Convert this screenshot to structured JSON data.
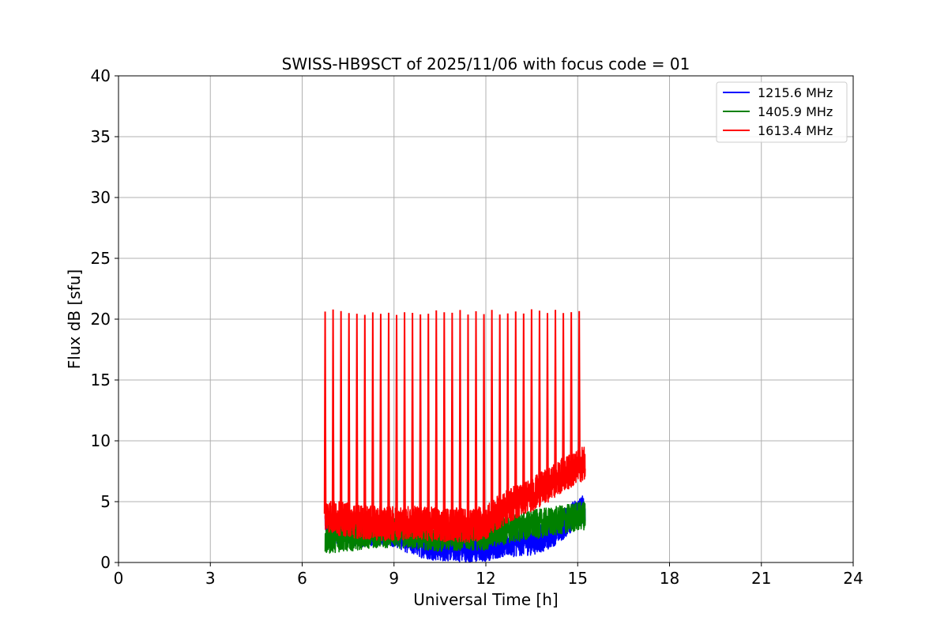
{
  "chart_data": {
    "type": "line",
    "title": "SWISS-HB9SCT of 2025/11/06 with focus code = 01",
    "xlabel": "Universal Time [h]",
    "ylabel": "Flux dB [sfu]",
    "xlim": [
      0,
      24
    ],
    "ylim": [
      0,
      40
    ],
    "xticks": [
      0,
      3,
      6,
      9,
      12,
      15,
      18,
      21,
      24
    ],
    "yticks": [
      0,
      5,
      10,
      15,
      20,
      25,
      30,
      35,
      40
    ],
    "grid": true,
    "legend_position": "top-right",
    "series": [
      {
        "name": "1215.6 MHz",
        "color": "#0000ff",
        "points": [
          [
            6.75,
            3.5
          ],
          [
            7.0,
            2.8
          ],
          [
            7.5,
            2.6
          ],
          [
            8.0,
            2.4
          ],
          [
            8.5,
            2.6
          ],
          [
            9.0,
            2.5
          ],
          [
            9.5,
            1.9
          ],
          [
            10.0,
            1.5
          ],
          [
            10.5,
            1.3
          ],
          [
            11.0,
            1.3
          ],
          [
            11.5,
            1.1
          ],
          [
            12.0,
            1.3
          ],
          [
            12.5,
            1.6
          ],
          [
            13.0,
            1.7
          ],
          [
            13.5,
            1.8
          ],
          [
            14.0,
            2.2
          ],
          [
            14.5,
            3.0
          ],
          [
            15.0,
            4.2
          ],
          [
            15.25,
            4.4
          ]
        ]
      },
      {
        "name": "1405.9 MHz",
        "color": "#008000",
        "points": [
          [
            6.75,
            1.8
          ],
          [
            7.0,
            2.0
          ],
          [
            7.5,
            2.1
          ],
          [
            8.0,
            2.3
          ],
          [
            8.5,
            2.4
          ],
          [
            9.0,
            2.4
          ],
          [
            9.5,
            2.3
          ],
          [
            10.0,
            2.2
          ],
          [
            10.5,
            2.1
          ],
          [
            11.0,
            2.2
          ],
          [
            11.5,
            2.2
          ],
          [
            12.0,
            2.2
          ],
          [
            12.5,
            2.6
          ],
          [
            13.0,
            2.9
          ],
          [
            13.5,
            3.1
          ],
          [
            14.0,
            3.3
          ],
          [
            14.5,
            3.5
          ],
          [
            15.0,
            3.8
          ],
          [
            15.25,
            3.9
          ]
        ]
      },
      {
        "name": "1613.4 MHz",
        "color": "#ff0000",
        "points": [
          [
            6.75,
            4.0
          ],
          [
            7.0,
            3.7
          ],
          [
            7.5,
            3.5
          ],
          [
            8.0,
            3.3
          ],
          [
            8.5,
            3.2
          ],
          [
            9.0,
            3.2
          ],
          [
            9.5,
            3.3
          ],
          [
            10.0,
            3.2
          ],
          [
            10.5,
            3.1
          ],
          [
            11.0,
            3.1
          ],
          [
            11.5,
            3.0
          ],
          [
            12.0,
            3.3
          ],
          [
            12.5,
            4.3
          ],
          [
            13.0,
            5.0
          ],
          [
            13.5,
            5.6
          ],
          [
            14.0,
            6.3
          ],
          [
            14.5,
            7.2
          ],
          [
            15.0,
            7.8
          ],
          [
            15.25,
            8.3
          ]
        ],
        "spikes": {
          "start_hour": 6.75,
          "end_hour": 15.05,
          "count": 33,
          "peak": 20.6
        }
      }
    ]
  }
}
